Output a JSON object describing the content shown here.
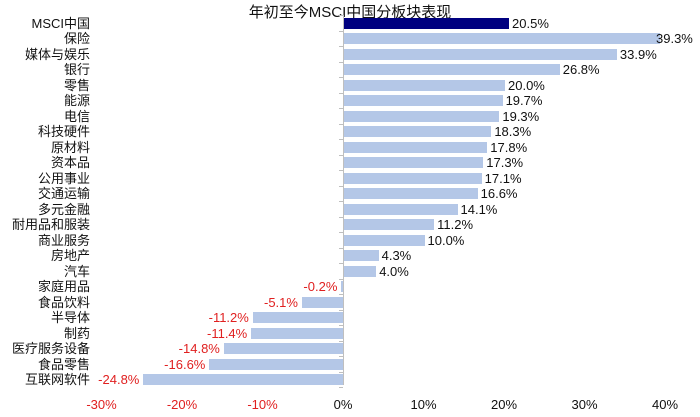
{
  "chart_data": {
    "type": "bar",
    "orientation": "horizontal",
    "title": "年初至今MSCI中国分板块表现",
    "xlabel": "",
    "ylabel": "",
    "xlim": [
      -30,
      40
    ],
    "x_ticks": [
      "-30%",
      "-20%",
      "-10%",
      "0%",
      "10%",
      "20%",
      "30%",
      "40%"
    ],
    "x_tick_values": [
      -30,
      -20,
      -10,
      0,
      10,
      20,
      30,
      40
    ],
    "grid": false,
    "legend": null,
    "categories": [
      "MSCI中国",
      "保险",
      "媒体与娱乐",
      "银行",
      "零售",
      "能源",
      "电信",
      "科技硬件",
      "原材料",
      "资本品",
      "公用事业",
      "交通运输",
      "多元金融",
      "耐用品和服装",
      "商业服务",
      "房地产",
      "汽车",
      "家庭用品",
      "食品饮料",
      "半导体",
      "制药",
      "医疗服务设备",
      "食品零售",
      "互联网软件"
    ],
    "values": [
      20.5,
      39.3,
      33.9,
      26.8,
      20.0,
      19.7,
      19.3,
      18.3,
      17.8,
      17.3,
      17.1,
      16.6,
      14.1,
      11.2,
      10.0,
      4.3,
      4.0,
      -0.2,
      -5.1,
      -11.2,
      -11.4,
      -14.8,
      -16.6,
      -24.8
    ],
    "labels": [
      "20.5%",
      "39.3%",
      "33.9%",
      "26.8%",
      "20.0%",
      "19.7%",
      "19.3%",
      "18.3%",
      "17.8%",
      "17.3%",
      "17.1%",
      "16.6%",
      "14.1%",
      "11.2%",
      "10.0%",
      "4.3%",
      "4.0%",
      "-0.2%",
      "-5.1%",
      "-11.2%",
      "-11.4%",
      "-14.8%",
      "-16.6%",
      "-24.8%"
    ],
    "highlight_index": 0
  },
  "colors": {
    "highlight_bar": "#000080",
    "bar": "#b4c7e7",
    "negative_label": "#e02020",
    "positive_label": "#111111",
    "axis": "#bfbfbf"
  }
}
